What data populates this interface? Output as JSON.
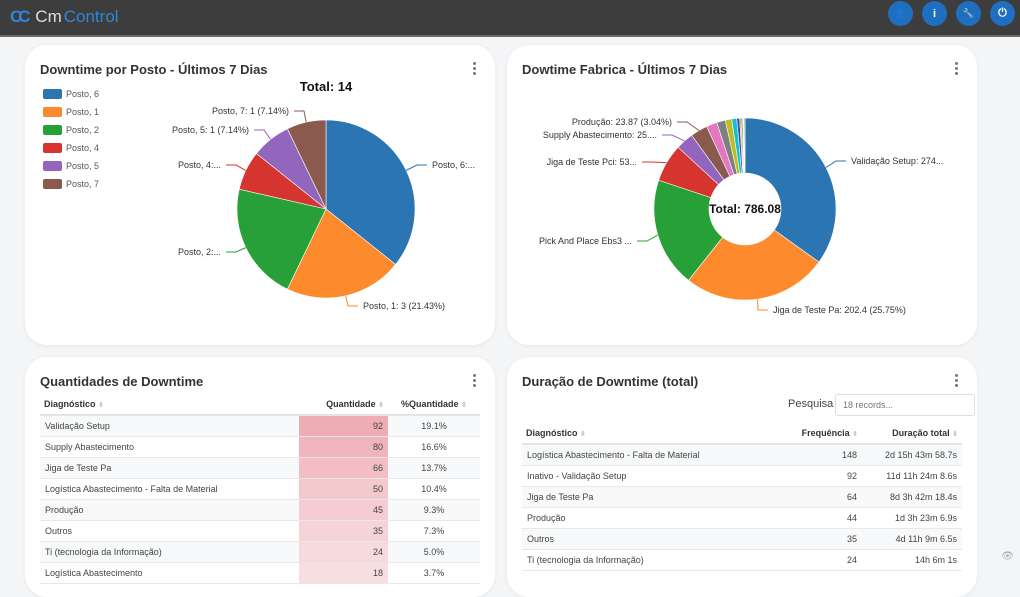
{
  "app": {
    "logo_prefix": "Cm",
    "logo_suffix": "Control",
    "header_buttons": [
      {
        "icon": "user-icon",
        "glyph": "👤"
      },
      {
        "icon": "info-icon",
        "glyph": "i"
      },
      {
        "icon": "wrench-icon",
        "glyph": "🔧"
      },
      {
        "icon": "power-icon",
        "glyph": "⏻"
      }
    ]
  },
  "chart_data": [
    {
      "type": "pie",
      "title": "Downtime por Posto - Últimos 7 Dias",
      "center_label": "Total: 14",
      "legend_position": "left",
      "categories": [
        "Posto, 6",
        "Posto, 1",
        "Posto, 2",
        "Posto, 4",
        "Posto, 5",
        "Posto, 7"
      ],
      "values": [
        5,
        3,
        3,
        1,
        1,
        1
      ],
      "colors": [
        "#2c75b3",
        "#fd8a2c",
        "#28a038",
        "#d6352f",
        "#9366bd",
        "#8a5a4e"
      ],
      "data_labels": [
        "Posto, 6:...",
        "Posto, 1: 3 (21.43%)",
        "Posto, 2:...",
        "Posto, 4:...",
        "Posto, 5: 1 (7.14%)",
        "Posto, 7: 1 (7.14%)"
      ]
    },
    {
      "type": "pie",
      "variant": "donut",
      "title": "Dowtime Fabrica - Últimos 7 Dias",
      "center_label": "Total: 786.08",
      "categories": [
        "Validação Setup",
        "Jiga de Teste Pa",
        "Pick And Place Ebs3",
        "Jiga de Teste Pci",
        "Supply Abastecimento",
        "Produção",
        "",
        "",
        "",
        "",
        "",
        "",
        "",
        "",
        "",
        ""
      ],
      "values": [
        274.4,
        202.4,
        153,
        53,
        25,
        23.87,
        15,
        12,
        9,
        7,
        4,
        2,
        2,
        1,
        1,
        1.41
      ],
      "colors": [
        "#2c75b3",
        "#fd8a2c",
        "#28a038",
        "#d6352f",
        "#9366bd",
        "#8a5a4e",
        "#e377c2",
        "#7f7f7f",
        "#bcbd22",
        "#17becf",
        "#2c4fb3",
        "#fd8a2c",
        "#28a038",
        "#d6352f",
        "#9366bd",
        "#8a5a4e"
      ],
      "data_labels": [
        "Validação Setup: 274...",
        "Jiga de Teste Pa: 202.4 (25.75%)",
        "Pick And Place Ebs3 ...",
        "Jiga de Teste Pci: 53...",
        "Supply Abastecimento: 25....",
        "Produção: 23.87 (3.04%)",
        "",
        "",
        "",
        "",
        "",
        "",
        "",
        "",
        "",
        ""
      ]
    }
  ],
  "qty": {
    "title": "Quantidades de Downtime",
    "headers": [
      "Diagnóstico",
      "Quantidade",
      "%Quantidade"
    ],
    "rows": [
      [
        "Validação Setup",
        "92",
        "19.1%"
      ],
      [
        "Supply Abastecimento",
        "80",
        "16.6%"
      ],
      [
        "Jiga de Teste Pa",
        "66",
        "13.7%"
      ],
      [
        "Logística Abastecimento - Falta de Material",
        "50",
        "10.4%"
      ],
      [
        "Produção",
        "45",
        "9.3%"
      ],
      [
        "Outros",
        "35",
        "7.3%"
      ],
      [
        "Ti (tecnologia da Informação)",
        "24",
        "5.0%"
      ],
      [
        "Logística Abastecimento",
        "18",
        "3.7%"
      ]
    ]
  },
  "dur": {
    "title": "Duração de Downtime (total)",
    "search_label": "Pesquisa",
    "search_placeholder": "18 records...",
    "headers": [
      "Diagnóstico",
      "Frequência",
      "Duração total"
    ],
    "rows": [
      [
        "Logística Abastecimento - Falta de Material",
        "148",
        "2d 15h 43m 58.7s"
      ],
      [
        "Inativo - Validação Setup",
        "92",
        "11d 11h 24m 8.6s"
      ],
      [
        "Jiga de Teste Pa",
        "64",
        "8d 3h 42m 18.4s"
      ],
      [
        "Produção",
        "44",
        "1d 3h 23m 6.9s"
      ],
      [
        "Outros",
        "35",
        "4d 11h 9m 6.5s"
      ],
      [
        "Ti (tecnologia da Informação)",
        "24",
        "14h 6m 1s"
      ]
    ]
  }
}
